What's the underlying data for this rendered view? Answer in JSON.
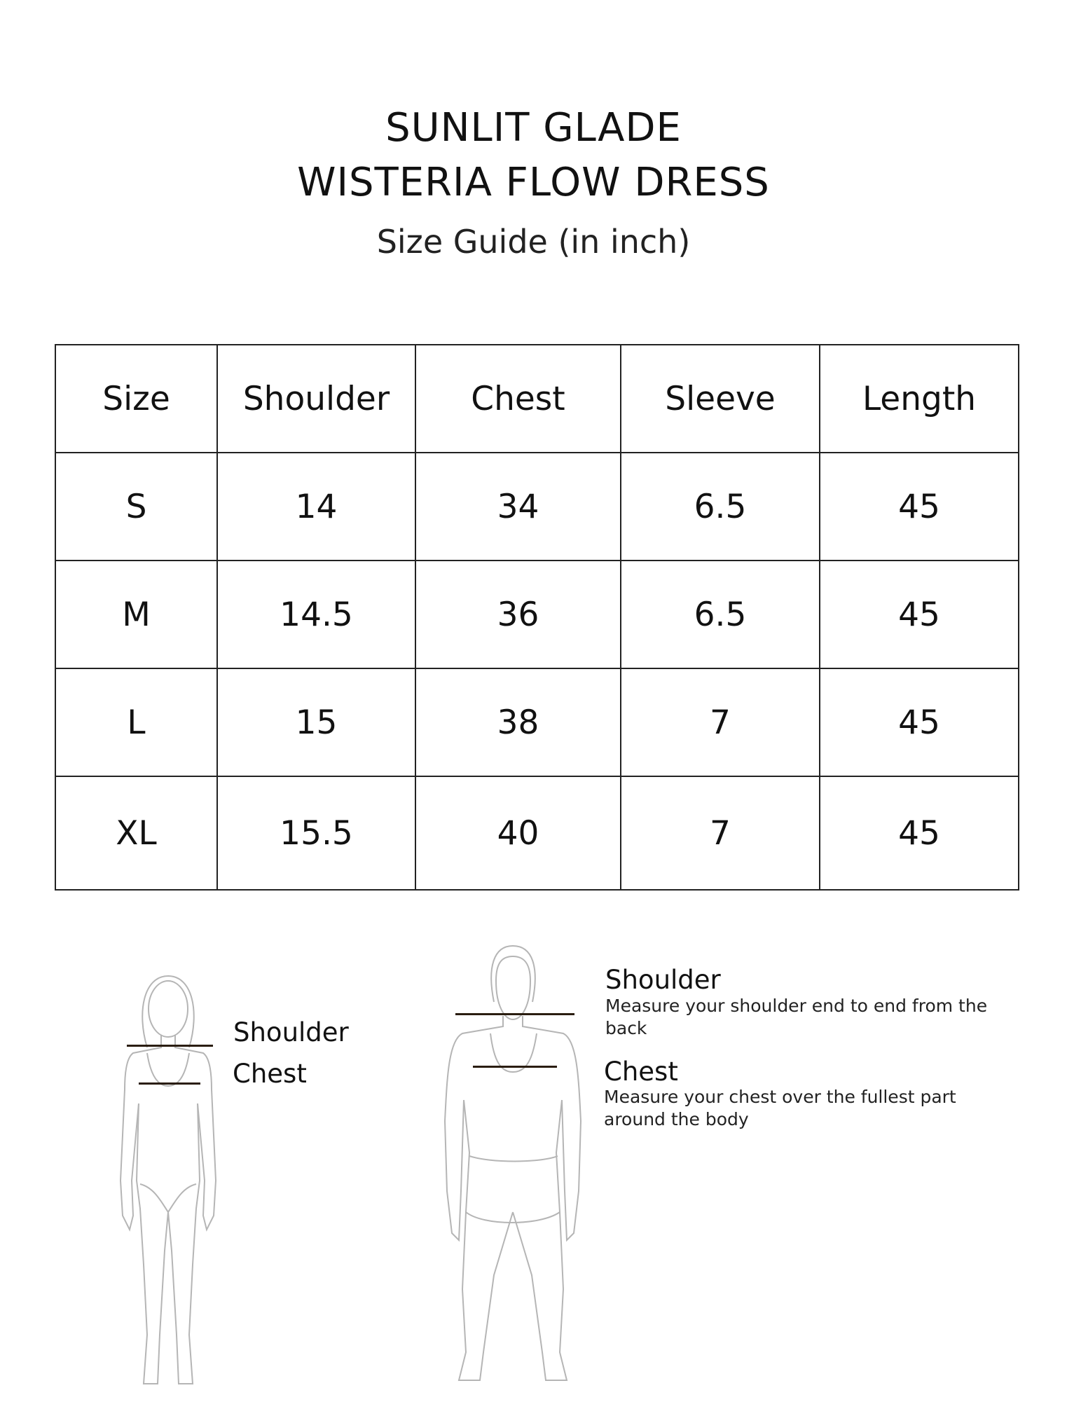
{
  "header": {
    "brand": "SUNLIT GLADE",
    "product": "WISTERIA FLOW DRESS",
    "subtitle": "Size Guide (in inch)"
  },
  "table": {
    "columns": [
      "Size",
      "Shoulder",
      "Chest",
      "Sleeve",
      "Length"
    ],
    "rows": [
      [
        "S",
        "14",
        "34",
        "6.5",
        "45"
      ],
      [
        "M",
        "14.5",
        "36",
        "6.5",
        "45"
      ],
      [
        "L",
        "15",
        "38",
        "7",
        "45"
      ],
      [
        "XL",
        "15.5",
        "40",
        "7",
        "45"
      ]
    ]
  },
  "female_figure": {
    "labels": [
      "Shoulder",
      "Chest"
    ]
  },
  "male_figure": {
    "measurements": [
      {
        "label": "Shoulder",
        "description": "Measure your shoulder end to end from the back"
      },
      {
        "label": "Chest",
        "description": "Measure your chest over the fullest part around the body"
      }
    ]
  },
  "colors": {
    "outline": "#b5b5b5",
    "measure_line": "#2a1d10",
    "text": "#111111"
  }
}
